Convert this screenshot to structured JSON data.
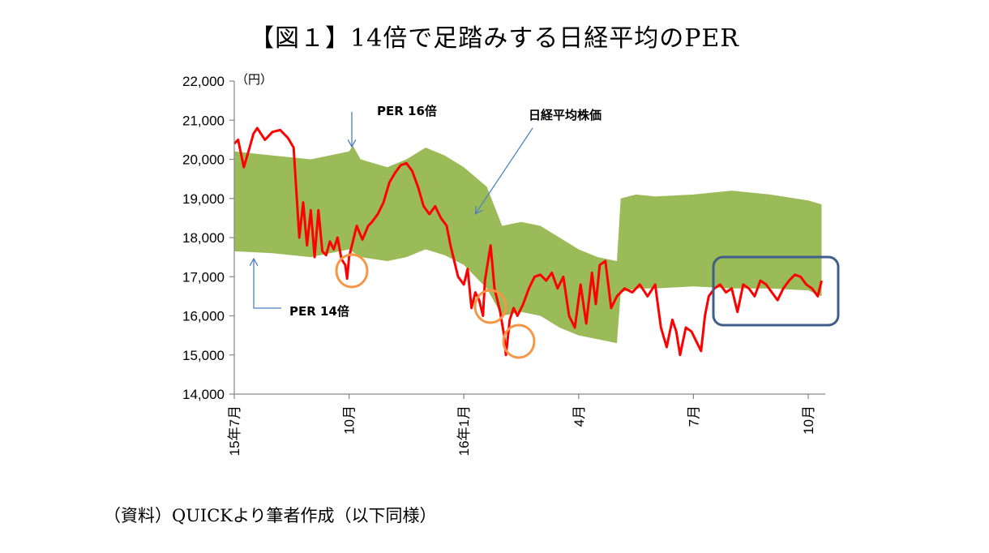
{
  "title": "【図１】14倍で足踏みする日経平均のPER",
  "source": "（資料）QUICKより筆者作成（以下同様）",
  "chart_data": {
    "type": "line",
    "title": "【図１】14倍で足踏みする日経平均のPER",
    "ylabel": "（円）",
    "xlabel": "",
    "ylim": [
      14000,
      22000
    ],
    "yticks": [
      "14,000",
      "15,000",
      "16,000",
      "17,000",
      "18,000",
      "19,000",
      "20,000",
      "21,000",
      "22,000"
    ],
    "ytick_values": [
      14000,
      15000,
      16000,
      17000,
      18000,
      19000,
      20000,
      21000,
      22000
    ],
    "xlim": [
      0,
      15.4
    ],
    "xticks": [
      {
        "label": "15年7月",
        "x": 0
      },
      {
        "label": "10月",
        "x": 3
      },
      {
        "label": "16年1月",
        "x": 6
      },
      {
        "label": "4月",
        "x": 9
      },
      {
        "label": "7月",
        "x": 12
      },
      {
        "label": "10月",
        "x": 15
      }
    ],
    "grid": false,
    "colors": {
      "price": "#ff0000",
      "band": "#9bbb59",
      "circle": "#f79646",
      "box": "#3f5f8a",
      "arrow": "#4f81bd"
    },
    "series": [
      {
        "name": "日経平均株価",
        "x": [
          0,
          0.1,
          0.25,
          0.4,
          0.5,
          0.6,
          0.8,
          1.0,
          1.2,
          1.4,
          1.55,
          1.7,
          1.8,
          1.9,
          2.0,
          2.1,
          2.2,
          2.3,
          2.4,
          2.5,
          2.6,
          2.7,
          2.8,
          2.9,
          2.95,
          3.0,
          3.1,
          3.2,
          3.35,
          3.5,
          3.6,
          3.75,
          3.9,
          4.05,
          4.2,
          4.35,
          4.5,
          4.65,
          4.8,
          4.95,
          5.1,
          5.25,
          5.4,
          5.55,
          5.65,
          5.75,
          5.85,
          6.0,
          6.1,
          6.2,
          6.3,
          6.4,
          6.5,
          6.55,
          6.6,
          6.7,
          6.8,
          6.95,
          7.05,
          7.1,
          7.2,
          7.3,
          7.4,
          7.55,
          7.7,
          7.85,
          8.0,
          8.15,
          8.3,
          8.45,
          8.6,
          8.75,
          8.9,
          9.05,
          9.2,
          9.35,
          9.45,
          9.55,
          9.7,
          9.85,
          10.0,
          10.2,
          10.4,
          10.6,
          10.8,
          11.0,
          11.15,
          11.3,
          11.45,
          11.55,
          11.65,
          11.8,
          11.95,
          12.1,
          12.2,
          12.3,
          12.4,
          12.55,
          12.7,
          12.85,
          13.0,
          13.15,
          13.3,
          13.45,
          13.6,
          13.75,
          13.9,
          14.05,
          14.2,
          14.35,
          14.5,
          14.65,
          14.8,
          14.95,
          15.1,
          15.25,
          15.35
        ],
        "values": [
          20400,
          20500,
          19800,
          20300,
          20650,
          20800,
          20500,
          20700,
          20750,
          20550,
          20300,
          18000,
          18900,
          17800,
          18700,
          17500,
          18700,
          17650,
          17550,
          17900,
          17700,
          18000,
          17450,
          17300,
          16950,
          17500,
          17900,
          18300,
          17950,
          18300,
          18400,
          18600,
          18900,
          19400,
          19650,
          19850,
          19900,
          19700,
          19300,
          18800,
          18600,
          18800,
          18500,
          18300,
          17800,
          17400,
          17000,
          16800,
          17200,
          16200,
          16600,
          16400,
          16000,
          16900,
          17200,
          17800,
          16700,
          16100,
          15500,
          15000,
          15900,
          16200,
          16000,
          16300,
          16700,
          17000,
          17050,
          16900,
          17100,
          16700,
          17000,
          16000,
          15700,
          16800,
          15800,
          17100,
          16300,
          17300,
          17400,
          16200,
          16500,
          16700,
          16600,
          16800,
          16500,
          16800,
          15700,
          15200,
          15900,
          15600,
          15000,
          15700,
          15600,
          15300,
          15100,
          16000,
          16500,
          16700,
          16800,
          16600,
          16700,
          16100,
          16800,
          16700,
          16500,
          16900,
          16800,
          16600,
          16400,
          16700,
          16900,
          17050,
          17000,
          16800,
          16700,
          16500,
          16900
        ]
      },
      {
        "name": "PER 16倍",
        "x": [
          0,
          1,
          2,
          3,
          3.1,
          3.3,
          4,
          4.5,
          5.0,
          5.5,
          6.0,
          6.6,
          7.0,
          7.5,
          8.0,
          8.5,
          9.0,
          9.5,
          10.0,
          10.1,
          10.5,
          11,
          12,
          13,
          14,
          15,
          15.35
        ],
        "values": [
          20200,
          20100,
          20000,
          20200,
          20350,
          20000,
          19800,
          20000,
          20300,
          20100,
          19800,
          19300,
          18300,
          18400,
          18300,
          18000,
          17700,
          17500,
          17400,
          19000,
          19100,
          19050,
          19100,
          19200,
          19100,
          18950,
          18850
        ]
      },
      {
        "name": "PER 14倍",
        "x": [
          0,
          1,
          2,
          3,
          3.3,
          4,
          4.5,
          5,
          5.5,
          6,
          6.6,
          7,
          7.5,
          8,
          8.5,
          9,
          9.5,
          10,
          10.1,
          10.5,
          11,
          12,
          13,
          14,
          15,
          15.35
        ],
        "values": [
          17650,
          17600,
          17500,
          17700,
          17500,
          17400,
          17500,
          17700,
          17550,
          17300,
          16700,
          16000,
          16100,
          16000,
          15700,
          15500,
          15400,
          15300,
          16600,
          16700,
          16700,
          16750,
          16700,
          16700,
          16650,
          16500
        ]
      }
    ],
    "annotations": [
      "PER 16倍",
      "日経平均株価",
      "PER 14倍"
    ]
  }
}
